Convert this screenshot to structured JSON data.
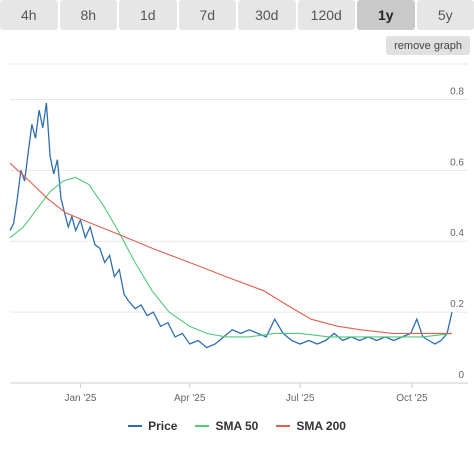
{
  "tabs": [
    {
      "label": "4h"
    },
    {
      "label": "8h"
    },
    {
      "label": "1d"
    },
    {
      "label": "7d"
    },
    {
      "label": "30d"
    },
    {
      "label": "120d"
    },
    {
      "label": "1y",
      "active": true
    },
    {
      "label": "5y"
    }
  ],
  "remove_graph_label": "remove graph",
  "chart_data": {
    "type": "line",
    "x_ticks": [
      "Jan '25",
      "Apr '25",
      "Jul '25",
      "Oct '25"
    ],
    "y_ticks": [
      "0",
      "0.2",
      "0.4",
      "0.6",
      "0.8"
    ],
    "ylim": [
      0,
      0.9
    ],
    "grid": true,
    "legend_position": "bottom",
    "x_range": [
      "2024-11-04",
      "2025-11-03"
    ],
    "series": [
      {
        "name": "Price",
        "color": "#2f6fb0",
        "points": [
          [
            "2024-11-04",
            0.43
          ],
          [
            "2024-11-07",
            0.45
          ],
          [
            "2024-11-10",
            0.52
          ],
          [
            "2024-11-13",
            0.6
          ],
          [
            "2024-11-16",
            0.57
          ],
          [
            "2024-11-19",
            0.65
          ],
          [
            "2024-11-22",
            0.73
          ],
          [
            "2024-11-25",
            0.69
          ],
          [
            "2024-11-28",
            0.77
          ],
          [
            "2024-12-01",
            0.72
          ],
          [
            "2024-12-04",
            0.79
          ],
          [
            "2024-12-07",
            0.64
          ],
          [
            "2024-12-10",
            0.59
          ],
          [
            "2024-12-13",
            0.63
          ],
          [
            "2024-12-16",
            0.52
          ],
          [
            "2024-12-19",
            0.48
          ],
          [
            "2024-12-22",
            0.44
          ],
          [
            "2024-12-25",
            0.47
          ],
          [
            "2024-12-28",
            0.43
          ],
          [
            "2025-01-01",
            0.46
          ],
          [
            "2025-01-05",
            0.41
          ],
          [
            "2025-01-09",
            0.44
          ],
          [
            "2025-01-13",
            0.39
          ],
          [
            "2025-01-17",
            0.38
          ],
          [
            "2025-01-21",
            0.34
          ],
          [
            "2025-01-25",
            0.36
          ],
          [
            "2025-01-29",
            0.3
          ],
          [
            "2025-02-02",
            0.32
          ],
          [
            "2025-02-06",
            0.25
          ],
          [
            "2025-02-10",
            0.23
          ],
          [
            "2025-02-15",
            0.21
          ],
          [
            "2025-02-20",
            0.22
          ],
          [
            "2025-02-25",
            0.19
          ],
          [
            "2025-03-02",
            0.2
          ],
          [
            "2025-03-08",
            0.16
          ],
          [
            "2025-03-14",
            0.17
          ],
          [
            "2025-03-20",
            0.13
          ],
          [
            "2025-03-26",
            0.14
          ],
          [
            "2025-04-01",
            0.11
          ],
          [
            "2025-04-08",
            0.12
          ],
          [
            "2025-04-15",
            0.1
          ],
          [
            "2025-04-22",
            0.11
          ],
          [
            "2025-04-29",
            0.13
          ],
          [
            "2025-05-06",
            0.15
          ],
          [
            "2025-05-13",
            0.14
          ],
          [
            "2025-05-20",
            0.15
          ],
          [
            "2025-05-27",
            0.14
          ],
          [
            "2025-06-03",
            0.13
          ],
          [
            "2025-06-10",
            0.18
          ],
          [
            "2025-06-17",
            0.14
          ],
          [
            "2025-06-24",
            0.12
          ],
          [
            "2025-07-01",
            0.11
          ],
          [
            "2025-07-08",
            0.12
          ],
          [
            "2025-07-15",
            0.11
          ],
          [
            "2025-07-22",
            0.12
          ],
          [
            "2025-07-29",
            0.14
          ],
          [
            "2025-08-05",
            0.12
          ],
          [
            "2025-08-12",
            0.13
          ],
          [
            "2025-08-19",
            0.12
          ],
          [
            "2025-08-26",
            0.13
          ],
          [
            "2025-09-02",
            0.12
          ],
          [
            "2025-09-09",
            0.13
          ],
          [
            "2025-09-16",
            0.12
          ],
          [
            "2025-09-23",
            0.13
          ],
          [
            "2025-09-30",
            0.14
          ],
          [
            "2025-10-05",
            0.18
          ],
          [
            "2025-10-10",
            0.13
          ],
          [
            "2025-10-15",
            0.12
          ],
          [
            "2025-10-20",
            0.11
          ],
          [
            "2025-10-25",
            0.12
          ],
          [
            "2025-10-30",
            0.14
          ],
          [
            "2025-11-03",
            0.2
          ]
        ]
      },
      {
        "name": "SMA 50",
        "color": "#4fc97a",
        "points": [
          [
            "2024-11-04",
            0.41
          ],
          [
            "2024-11-15",
            0.44
          ],
          [
            "2024-11-26",
            0.49
          ],
          [
            "2024-12-07",
            0.54
          ],
          [
            "2024-12-18",
            0.57
          ],
          [
            "2024-12-28",
            0.58
          ],
          [
            "2025-01-08",
            0.56
          ],
          [
            "2025-01-20",
            0.5
          ],
          [
            "2025-02-01",
            0.43
          ],
          [
            "2025-02-15",
            0.34
          ],
          [
            "2025-03-01",
            0.26
          ],
          [
            "2025-03-15",
            0.2
          ],
          [
            "2025-04-01",
            0.16
          ],
          [
            "2025-04-15",
            0.14
          ],
          [
            "2025-05-01",
            0.13
          ],
          [
            "2025-05-20",
            0.13
          ],
          [
            "2025-06-10",
            0.14
          ],
          [
            "2025-07-01",
            0.14
          ],
          [
            "2025-07-25",
            0.13
          ],
          [
            "2025-08-20",
            0.13
          ],
          [
            "2025-09-15",
            0.13
          ],
          [
            "2025-10-10",
            0.13
          ],
          [
            "2025-11-03",
            0.14
          ]
        ]
      },
      {
        "name": "SMA 200",
        "color": "#e0604f",
        "points": [
          [
            "2024-11-04",
            0.62
          ],
          [
            "2024-11-20",
            0.57
          ],
          [
            "2024-12-05",
            0.52
          ],
          [
            "2024-12-20",
            0.48
          ],
          [
            "2025-01-10",
            0.45
          ],
          [
            "2025-02-01",
            0.42
          ],
          [
            "2025-03-01",
            0.38
          ],
          [
            "2025-04-01",
            0.34
          ],
          [
            "2025-05-01",
            0.3
          ],
          [
            "2025-06-01",
            0.26
          ],
          [
            "2025-06-20",
            0.22
          ],
          [
            "2025-07-10",
            0.18
          ],
          [
            "2025-08-01",
            0.16
          ],
          [
            "2025-08-20",
            0.15
          ],
          [
            "2025-09-15",
            0.14
          ],
          [
            "2025-10-10",
            0.14
          ],
          [
            "2025-11-03",
            0.14
          ]
        ]
      }
    ]
  }
}
